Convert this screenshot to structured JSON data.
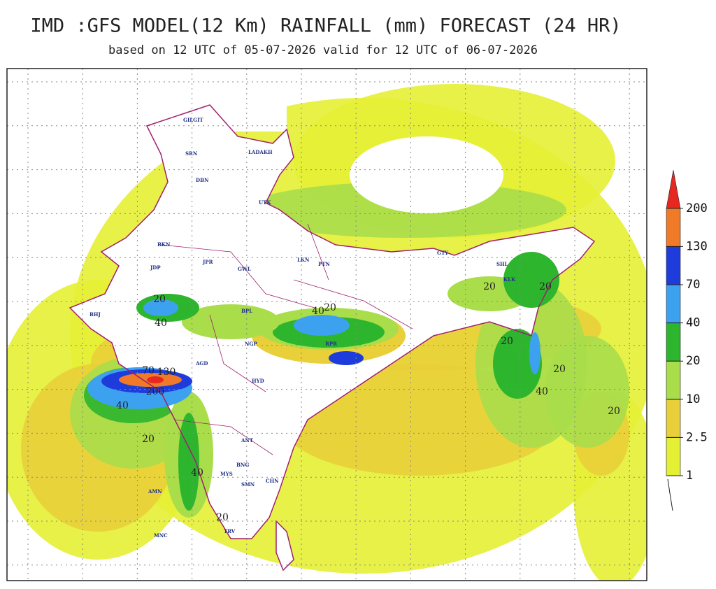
{
  "header": {
    "title": "IMD :GFS MODEL(12 Km) RAINFALL (mm) FORECAST (24 HR)",
    "subtitle": "based on 12 UTC of 05-07-2026 valid for 12 UTC of 06-07-2026"
  },
  "legend": {
    "levels": [
      1,
      2.5,
      10,
      20,
      40,
      70,
      130,
      200
    ],
    "colors": [
      "#e4f034",
      "#e9cf3a",
      "#a9dd4a",
      "#2eb52e",
      "#3ca2f0",
      "#1e3cdc",
      "#f07a28",
      "#e62820"
    ]
  },
  "contour_labels": [
    "20",
    "40",
    "70",
    "130",
    "200",
    "40",
    "20",
    "40",
    "20",
    "20",
    "20",
    "20",
    "40",
    "20",
    "20",
    "40",
    "20"
  ],
  "stations": [
    "GILGIT",
    "SRN",
    "LADAKH",
    "DBN",
    "UTK",
    "BKN",
    "JDP",
    "JPR",
    "GWL",
    "LKN",
    "PTN",
    "GTY",
    "SHL",
    "KLK",
    "BPL",
    "RPR",
    "ANT",
    "BNG",
    "MYS",
    "CHN",
    "MNC",
    "AMN",
    "SMN",
    "BHJ",
    "AGD",
    "NGP",
    "HYD",
    "TRV"
  ]
}
